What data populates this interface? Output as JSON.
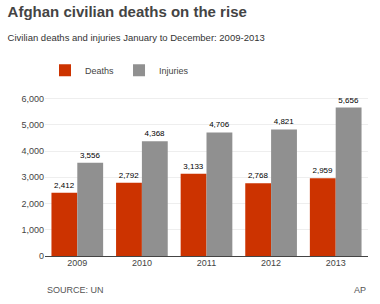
{
  "chart_data": {
    "type": "bar",
    "title": "Afghan civilian deaths on the rise",
    "subtitle": "Civilian deaths and injuries January to December: 2009-2013",
    "categories": [
      "2009",
      "2010",
      "2011",
      "2012",
      "2013"
    ],
    "series": [
      {
        "name": "Deaths",
        "color": "#cc3300",
        "values": [
          2412,
          2792,
          3133,
          2768,
          2959
        ],
        "value_labels": [
          "2,412",
          "2,792",
          "3,133",
          "2,768",
          "2,959"
        ]
      },
      {
        "name": "Injuries",
        "color": "#909090",
        "values": [
          3556,
          4368,
          4706,
          4821,
          5656
        ],
        "value_labels": [
          "3,556",
          "4,368",
          "4,706",
          "4,821",
          "5,656"
        ]
      }
    ],
    "ylim": [
      0,
      6400
    ],
    "yticks": [
      0,
      {
        "value": 1000,
        "label": "1,000"
      },
      {
        "value": 2000,
        "label": "2,000"
      },
      {
        "value": 3000,
        "label": "3,000"
      },
      {
        "value": 4000,
        "label": "4,000"
      },
      {
        "value": 5000,
        "label": "5,000"
      },
      {
        "value": 6000,
        "label": "6,000"
      }
    ],
    "grid": true,
    "legend": "top",
    "data_labels": true,
    "annotations": [
      "SOURCE: UN",
      "AP"
    ]
  }
}
